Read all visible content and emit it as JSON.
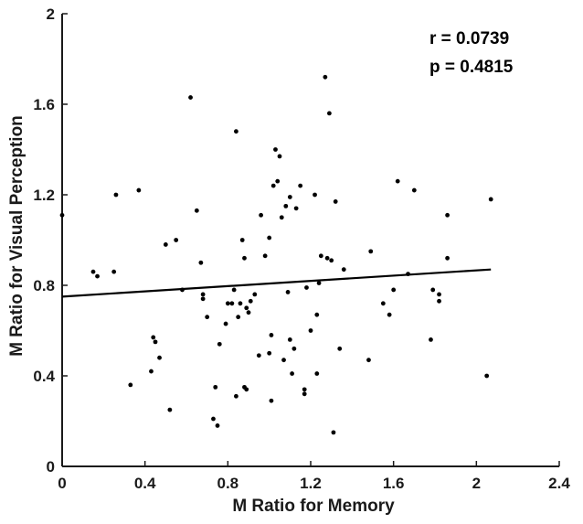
{
  "chart_data": {
    "type": "scatter",
    "xlabel": "M Ratio for Memory",
    "ylabel": "M Ratio for Visual Perception",
    "xlim": [
      0,
      2.4
    ],
    "ylim": [
      0,
      2
    ],
    "xticks": [
      "0",
      "0.4",
      "0.8",
      "1.2",
      "1.6",
      "2",
      "2.4"
    ],
    "yticks": [
      "0",
      "0.4",
      "0.8",
      "1.2",
      "1.6",
      "2"
    ],
    "annotations": {
      "r": "r = 0.0739",
      "p": "p = 0.4815"
    },
    "fit_line": {
      "x": [
        0,
        2.07
      ],
      "y": [
        0.75,
        0.87
      ]
    },
    "points": [
      [
        0.0,
        1.11
      ],
      [
        0.15,
        0.86
      ],
      [
        0.17,
        0.84
      ],
      [
        0.25,
        0.86
      ],
      [
        0.26,
        1.2
      ],
      [
        0.33,
        0.36
      ],
      [
        0.37,
        1.22
      ],
      [
        0.43,
        0.42
      ],
      [
        0.44,
        0.57
      ],
      [
        0.45,
        0.55
      ],
      [
        0.47,
        0.48
      ],
      [
        0.5,
        0.98
      ],
      [
        0.52,
        0.25
      ],
      [
        0.55,
        1.0
      ],
      [
        0.58,
        0.78
      ],
      [
        0.62,
        1.63
      ],
      [
        0.65,
        1.13
      ],
      [
        0.67,
        0.9
      ],
      [
        0.68,
        0.76
      ],
      [
        0.68,
        0.74
      ],
      [
        0.7,
        0.66
      ],
      [
        0.73,
        0.21
      ],
      [
        0.74,
        0.35
      ],
      [
        0.75,
        0.18
      ],
      [
        0.76,
        0.54
      ],
      [
        0.79,
        0.63
      ],
      [
        0.8,
        0.72
      ],
      [
        0.82,
        0.72
      ],
      [
        0.83,
        0.78
      ],
      [
        0.84,
        0.31
      ],
      [
        0.84,
        1.48
      ],
      [
        0.85,
        0.66
      ],
      [
        0.86,
        0.72
      ],
      [
        0.87,
        1.0
      ],
      [
        0.88,
        0.35
      ],
      [
        0.88,
        0.92
      ],
      [
        0.89,
        0.34
      ],
      [
        0.89,
        0.7
      ],
      [
        0.9,
        0.68
      ],
      [
        0.91,
        0.73
      ],
      [
        0.93,
        0.76
      ],
      [
        0.95,
        0.49
      ],
      [
        0.96,
        1.11
      ],
      [
        0.98,
        0.93
      ],
      [
        1.0,
        0.5
      ],
      [
        1.0,
        1.01
      ],
      [
        1.01,
        0.29
      ],
      [
        1.01,
        0.58
      ],
      [
        1.02,
        1.24
      ],
      [
        1.03,
        1.4
      ],
      [
        1.04,
        1.26
      ],
      [
        1.05,
        1.37
      ],
      [
        1.06,
        1.1
      ],
      [
        1.07,
        0.47
      ],
      [
        1.08,
        1.15
      ],
      [
        1.09,
        0.77
      ],
      [
        1.1,
        1.19
      ],
      [
        1.1,
        0.56
      ],
      [
        1.11,
        0.41
      ],
      [
        1.12,
        0.52
      ],
      [
        1.13,
        1.14
      ],
      [
        1.15,
        1.24
      ],
      [
        1.17,
        0.34
      ],
      [
        1.17,
        0.32
      ],
      [
        1.18,
        0.79
      ],
      [
        1.2,
        0.6
      ],
      [
        1.22,
        1.2
      ],
      [
        1.23,
        0.67
      ],
      [
        1.23,
        0.41
      ],
      [
        1.24,
        0.81
      ],
      [
        1.25,
        0.93
      ],
      [
        1.27,
        1.72
      ],
      [
        1.28,
        0.92
      ],
      [
        1.29,
        1.56
      ],
      [
        1.3,
        0.91
      ],
      [
        1.31,
        0.15
      ],
      [
        1.32,
        1.17
      ],
      [
        1.34,
        0.52
      ],
      [
        1.36,
        0.87
      ],
      [
        1.48,
        0.47
      ],
      [
        1.49,
        0.95
      ],
      [
        1.55,
        0.72
      ],
      [
        1.58,
        0.67
      ],
      [
        1.6,
        0.78
      ],
      [
        1.62,
        1.26
      ],
      [
        1.67,
        0.85
      ],
      [
        1.7,
        1.22
      ],
      [
        1.78,
        0.56
      ],
      [
        1.79,
        0.78
      ],
      [
        1.82,
        0.76
      ],
      [
        1.82,
        0.73
      ],
      [
        1.86,
        1.11
      ],
      [
        1.86,
        0.92
      ],
      [
        2.05,
        0.4
      ],
      [
        2.07,
        1.18
      ]
    ]
  }
}
